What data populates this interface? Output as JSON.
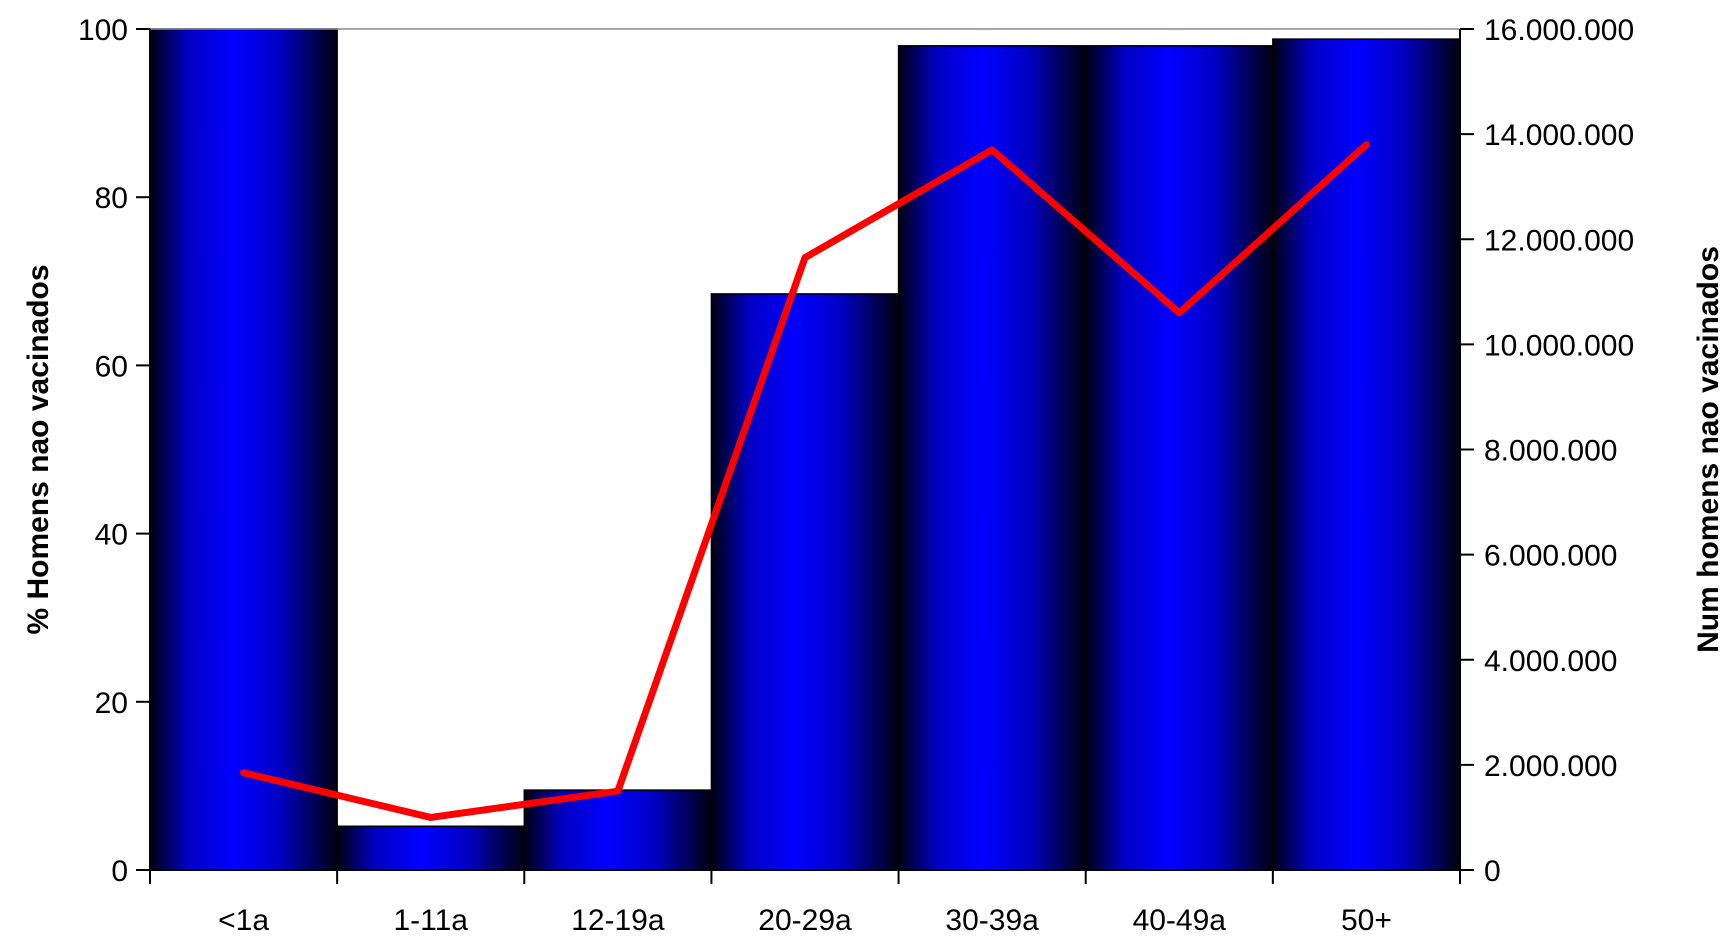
{
  "chart_data": {
    "type": "bar",
    "categories": [
      "<1a",
      "1-11a",
      "12-19a",
      "20-29a",
      "30-39a",
      "40-49a",
      "50+"
    ],
    "y_left": {
      "label": "% Homens nao vacinados",
      "range": [
        0,
        100
      ],
      "ticks": [
        0,
        20,
        40,
        60,
        80,
        100
      ],
      "tick_labels": [
        "0",
        "20",
        "40",
        "60",
        "80",
        "100"
      ]
    },
    "y_right": {
      "label": "Num homens nao vacinados",
      "range": [
        0,
        16000000
      ],
      "ticks": [
        0,
        2000000,
        4000000,
        6000000,
        8000000,
        10000000,
        12000000,
        14000000,
        16000000
      ],
      "tick_labels": [
        "0",
        "2.000.000",
        "4.000.000",
        "6.000.000",
        "8.000.000",
        "10.000.000",
        "12.000.000",
        "14.000.000",
        "16.000.000"
      ]
    },
    "series": [
      {
        "type": "bar",
        "axis": "left",
        "color": "#0000ff",
        "values": [
          100,
          5.2,
          9.5,
          68.5,
          98,
          98,
          98.8
        ]
      },
      {
        "type": "line",
        "axis": "right",
        "color": "#ff0000",
        "values": [
          1850000,
          1000000,
          1500000,
          11650000,
          13700000,
          10600000,
          13800000
        ]
      }
    ],
    "grid": false,
    "legend": "none"
  }
}
